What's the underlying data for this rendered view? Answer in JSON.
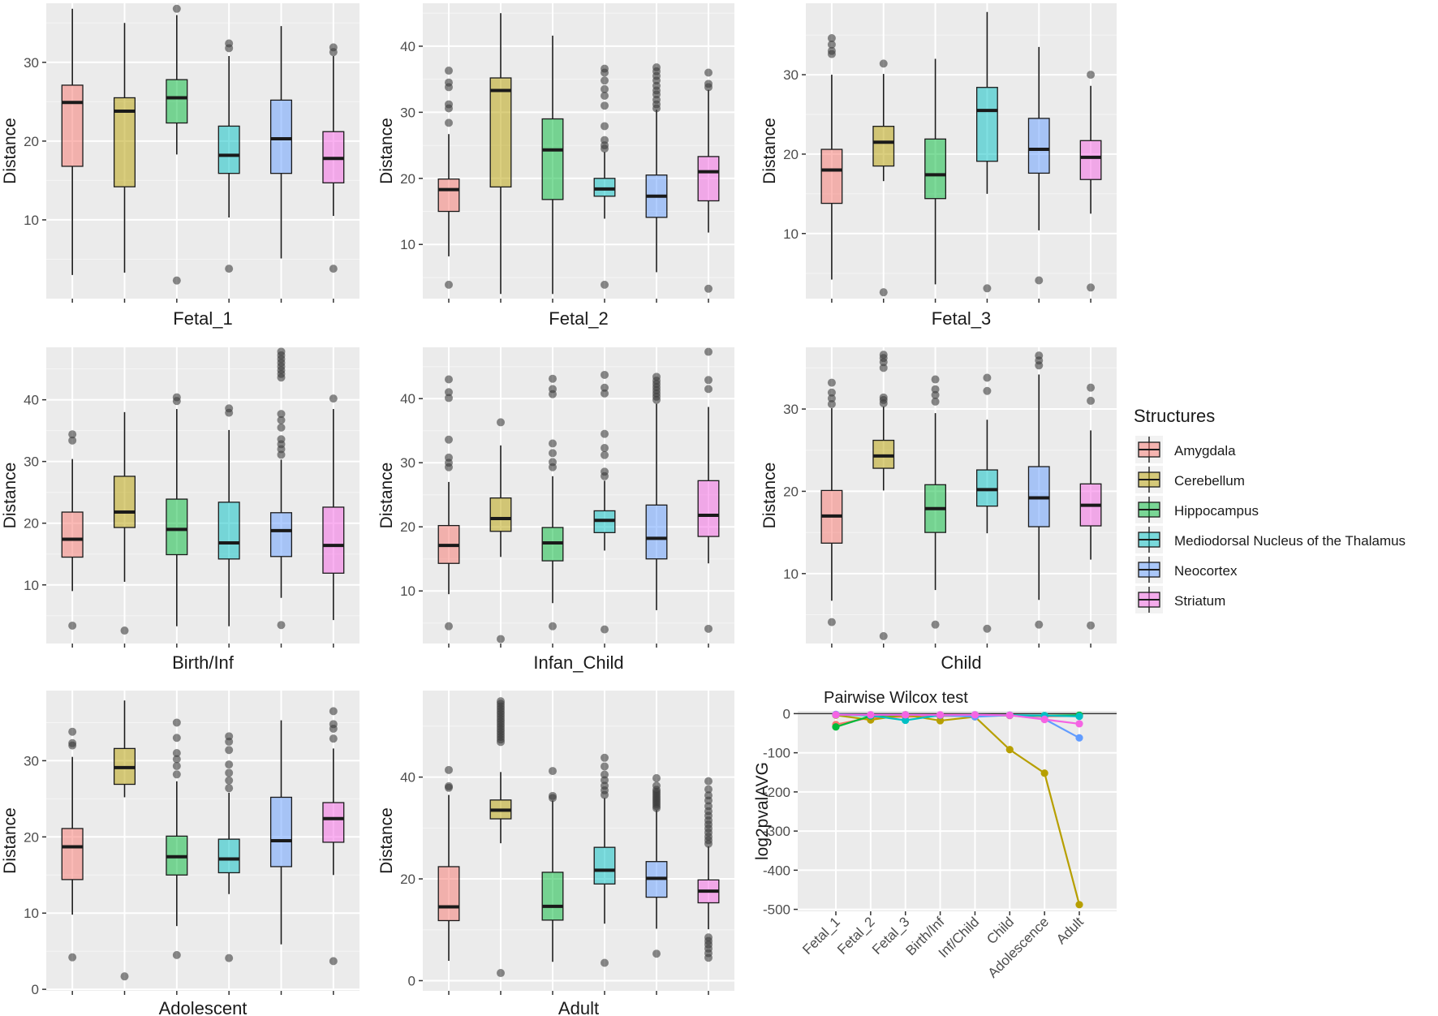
{
  "legend": {
    "title": "Structures",
    "items": [
      {
        "label": "Amygdala",
        "color": "#F8766D"
      },
      {
        "label": "Cerebellum",
        "color": "#B79F00"
      },
      {
        "label": "Hippocampus",
        "color": "#00BA38"
      },
      {
        "label": "Mediodorsal Nucleus of the Thalamus",
        "color": "#00BFC4"
      },
      {
        "label": "Neocortex",
        "color": "#619CFF"
      },
      {
        "label": "Striatum",
        "color": "#F564E3"
      }
    ]
  },
  "chart_data": [
    {
      "type": "boxplot",
      "title": "Fetal_1",
      "ylabel": "Distance",
      "ylim": [
        0,
        37.5
      ],
      "yticks": [
        10,
        20,
        30
      ],
      "boxes": [
        {
          "name": "Amygdala",
          "lower_whisker": 3,
          "q1": 16.8,
          "median": 24.9,
          "q3": 27.1,
          "upper_whisker": 36.8,
          "outliers": []
        },
        {
          "name": "Cerebellum",
          "lower_whisker": 3.3,
          "q1": 14.2,
          "median": 23.8,
          "q3": 25.5,
          "upper_whisker": 35,
          "outliers": []
        },
        {
          "name": "Hippocampus",
          "lower_whisker": 18.3,
          "q1": 22.3,
          "median": 25.5,
          "q3": 27.8,
          "upper_whisker": 36,
          "outliers": [
            2.3,
            36.8
          ]
        },
        {
          "name": "Mediodorsal Nucleus of the Thalamus",
          "lower_whisker": 10.3,
          "q1": 15.9,
          "median": 18.2,
          "q3": 21.9,
          "upper_whisker": 30.8,
          "outliers": [
            3.8,
            31.8,
            32.4
          ]
        },
        {
          "name": "Neocortex",
          "lower_whisker": 5.1,
          "q1": 15.9,
          "median": 20.3,
          "q3": 25.2,
          "upper_whisker": 34.6,
          "outliers": []
        },
        {
          "name": "Striatum",
          "lower_whisker": 10.5,
          "q1": 14.7,
          "median": 17.8,
          "q3": 21.2,
          "upper_whisker": 30.8,
          "outliers": [
            3.8,
            31.3,
            31.9
          ]
        }
      ]
    },
    {
      "type": "boxplot",
      "title": "Fetal_2",
      "ylabel": "Distance",
      "ylim": [
        1.8,
        46.5
      ],
      "yticks": [
        10,
        20,
        30,
        40
      ],
      "boxes": [
        {
          "name": "Amygdala",
          "lower_whisker": 8.2,
          "q1": 15,
          "median": 18.3,
          "q3": 19.9,
          "upper_whisker": 26.7,
          "outliers": [
            3.9,
            28.4,
            30.6,
            31.2,
            33.8,
            34.5,
            36.3
          ]
        },
        {
          "name": "Cerebellum",
          "lower_whisker": 2.5,
          "q1": 18.7,
          "median": 33.3,
          "q3": 35.2,
          "upper_whisker": 45,
          "outliers": []
        },
        {
          "name": "Hippocampus",
          "lower_whisker": 2.5,
          "q1": 16.8,
          "median": 24.3,
          "q3": 29,
          "upper_whisker": 41.6,
          "outliers": []
        },
        {
          "name": "Mediodorsal Nucleus of the Thalamus",
          "lower_whisker": 13.9,
          "q1": 17.3,
          "median": 18.4,
          "q3": 20,
          "upper_whisker": 24,
          "outliers": [
            3.9,
            24.5,
            25,
            25.8,
            27.9,
            31,
            32.5,
            33.5,
            34.8,
            36,
            36.6
          ]
        },
        {
          "name": "Neocortex",
          "lower_whisker": 5.8,
          "q1": 14.1,
          "median": 17.3,
          "q3": 20.5,
          "upper_whisker": 30.4,
          "outliers": [
            30.6,
            31.2,
            31.9,
            32.7,
            33.3,
            34,
            34.8,
            35.5,
            36.2,
            36.8
          ]
        },
        {
          "name": "Striatum",
          "lower_whisker": 11.8,
          "q1": 16.6,
          "median": 21,
          "q3": 23.3,
          "upper_whisker": 33.4,
          "outliers": [
            3.3,
            33.8,
            34.3,
            36
          ]
        }
      ]
    },
    {
      "type": "boxplot",
      "title": "Fetal_3",
      "ylabel": "Distance",
      "ylim": [
        1.8,
        39
      ],
      "yticks": [
        10,
        20,
        30
      ],
      "boxes": [
        {
          "name": "Amygdala",
          "lower_whisker": 4.2,
          "q1": 13.8,
          "median": 18,
          "q3": 20.6,
          "upper_whisker": 30,
          "outliers": [
            32.6,
            33,
            33.8,
            34.6
          ]
        },
        {
          "name": "Cerebellum",
          "lower_whisker": 16.6,
          "q1": 18.5,
          "median": 21.5,
          "q3": 23.5,
          "upper_whisker": 30.1,
          "outliers": [
            2.6,
            31.4
          ]
        },
        {
          "name": "Hippocampus",
          "lower_whisker": 3.6,
          "q1": 14.4,
          "median": 17.4,
          "q3": 21.9,
          "upper_whisker": 32,
          "outliers": []
        },
        {
          "name": "Mediodorsal Nucleus of the Thalamus",
          "lower_whisker": 15,
          "q1": 19.1,
          "median": 25.5,
          "q3": 28.4,
          "upper_whisker": 37.9,
          "outliers": [
            3.1
          ]
        },
        {
          "name": "Neocortex",
          "lower_whisker": 10.4,
          "q1": 17.6,
          "median": 20.6,
          "q3": 24.5,
          "upper_whisker": 33.5,
          "outliers": [
            4.1
          ]
        },
        {
          "name": "Striatum",
          "lower_whisker": 12.5,
          "q1": 16.8,
          "median": 19.6,
          "q3": 21.7,
          "upper_whisker": 28.6,
          "outliers": [
            3.2,
            30
          ]
        }
      ]
    },
    {
      "type": "boxplot",
      "title": "Birth/Inf",
      "ylabel": "Distance",
      "ylim": [
        0.5,
        48.5
      ],
      "yticks": [
        10,
        20,
        30,
        40
      ],
      "boxes": [
        {
          "name": "Amygdala",
          "lower_whisker": 9,
          "q1": 14.5,
          "median": 17.4,
          "q3": 21.8,
          "upper_whisker": 30.4,
          "outliers": [
            3.4,
            33.4,
            34.4
          ]
        },
        {
          "name": "Cerebellum",
          "lower_whisker": 10.5,
          "q1": 19.3,
          "median": 21.8,
          "q3": 27.6,
          "upper_whisker": 38,
          "outliers": [
            2.6
          ]
        },
        {
          "name": "Hippocampus",
          "lower_whisker": 3.3,
          "q1": 14.9,
          "median": 19,
          "q3": 23.9,
          "upper_whisker": 38.5,
          "outliers": [
            39.8,
            40.4
          ]
        },
        {
          "name": "Mediodorsal Nucleus of the Thalamus",
          "lower_whisker": 3.3,
          "q1": 14.2,
          "median": 16.8,
          "q3": 23.4,
          "upper_whisker": 35.1,
          "outliers": [
            37.9,
            38.6
          ]
        },
        {
          "name": "Neocortex",
          "lower_whisker": 7.9,
          "q1": 14.6,
          "median": 18.8,
          "q3": 21.7,
          "upper_whisker": 30.3,
          "outliers": [
            3.5,
            31.1,
            32,
            32.8,
            33.6,
            35.5,
            36.7,
            37.7,
            43.6,
            44.2,
            44.8,
            45.4,
            46,
            46.6,
            47.2,
            47.8
          ]
        },
        {
          "name": "Striatum",
          "lower_whisker": 4.3,
          "q1": 11.9,
          "median": 16.4,
          "q3": 22.6,
          "upper_whisker": 38.5,
          "outliers": [
            40.2
          ]
        }
      ]
    },
    {
      "type": "boxplot",
      "title": "Infan_Child",
      "ylabel": "Distance",
      "ylim": [
        1.8,
        48
      ],
      "yticks": [
        10,
        20,
        30,
        40
      ],
      "boxes": [
        {
          "name": "Amygdala",
          "lower_whisker": 9.5,
          "q1": 14.3,
          "median": 17.1,
          "q3": 20.2,
          "upper_whisker": 27,
          "outliers": [
            4.5,
            29.3,
            30,
            30.8,
            33.6,
            40.1,
            41,
            43
          ]
        },
        {
          "name": "Cerebellum",
          "lower_whisker": 15.3,
          "q1": 19.3,
          "median": 21.3,
          "q3": 24.5,
          "upper_whisker": 32.7,
          "outliers": [
            2.5,
            36.3
          ]
        },
        {
          "name": "Hippocampus",
          "lower_whisker": 8.1,
          "q1": 14.7,
          "median": 17.5,
          "q3": 19.9,
          "upper_whisker": 27.9,
          "outliers": [
            4.5,
            29.3,
            30.1,
            31.5,
            33,
            40.7,
            41.5,
            43.1
          ]
        },
        {
          "name": "Mediodorsal Nucleus of the Thalamus",
          "lower_whisker": 16.3,
          "q1": 19.1,
          "median": 21,
          "q3": 22.5,
          "upper_whisker": 27.2,
          "outliers": [
            4,
            27.9,
            28.6,
            31.2,
            32.3,
            34.5,
            40.8,
            41.7,
            43.7
          ]
        },
        {
          "name": "Neocortex",
          "lower_whisker": 7,
          "q1": 15,
          "median": 18.2,
          "q3": 23.4,
          "upper_whisker": 39.2,
          "outliers": [
            39.8,
            40.3,
            40.8,
            41.3,
            41.8,
            42.3,
            42.8,
            43.4
          ]
        },
        {
          "name": "Striatum",
          "lower_whisker": 14.3,
          "q1": 18.5,
          "median": 21.8,
          "q3": 27.2,
          "upper_whisker": 38.7,
          "outliers": [
            4.1,
            41.5,
            42.9,
            47.3
          ]
        }
      ]
    },
    {
      "type": "boxplot",
      "title": "Child",
      "ylabel": "Distance",
      "ylim": [
        1.5,
        37.5
      ],
      "yticks": [
        10,
        20,
        30
      ],
      "boxes": [
        {
          "name": "Amygdala",
          "lower_whisker": 6.7,
          "q1": 13.7,
          "median": 17,
          "q3": 20.1,
          "upper_whisker": 30.1,
          "outliers": [
            4.1,
            30.6,
            31.3,
            32,
            33.2
          ]
        },
        {
          "name": "Cerebellum",
          "lower_whisker": 20.1,
          "q1": 22.8,
          "median": 24.3,
          "q3": 26.2,
          "upper_whisker": 30.3,
          "outliers": [
            2.4,
            30.7,
            31.1,
            31.4,
            35,
            35.7,
            36.2,
            36.6
          ]
        },
        {
          "name": "Hippocampus",
          "lower_whisker": 8,
          "q1": 15,
          "median": 17.9,
          "q3": 20.8,
          "upper_whisker": 29.5,
          "outliers": [
            3.8,
            30.9,
            31.7,
            32.4,
            33.6
          ]
        },
        {
          "name": "Mediodorsal Nucleus of the Thalamus",
          "lower_whisker": 14.9,
          "q1": 18.2,
          "median": 20.2,
          "q3": 22.6,
          "upper_whisker": 28.7,
          "outliers": [
            3.3,
            32.2,
            33.8
          ]
        },
        {
          "name": "Neocortex",
          "lower_whisker": 6.8,
          "q1": 15.7,
          "median": 19.2,
          "q3": 23,
          "upper_whisker": 34.2,
          "outliers": [
            3.8,
            35.3,
            35.9,
            36.5
          ]
        },
        {
          "name": "Striatum",
          "lower_whisker": 11.7,
          "q1": 15.8,
          "median": 18.3,
          "q3": 20.9,
          "upper_whisker": 27.4,
          "outliers": [
            3.7,
            31,
            32.6
          ]
        }
      ]
    },
    {
      "type": "boxplot",
      "title": "Adolescent",
      "ylabel": "Distance",
      "ylim": [
        -0.2,
        39.2
      ],
      "yticks": [
        0,
        10,
        20,
        30
      ],
      "boxes": [
        {
          "name": "Amygdala",
          "lower_whisker": 9.8,
          "q1": 14.4,
          "median": 18.7,
          "q3": 21.1,
          "upper_whisker": 30.5,
          "outliers": [
            4.2,
            32,
            32.3,
            33.8
          ]
        },
        {
          "name": "Cerebellum",
          "lower_whisker": 25.2,
          "q1": 26.9,
          "median": 29.1,
          "q3": 31.6,
          "upper_whisker": 37.9,
          "outliers": [
            1.7
          ]
        },
        {
          "name": "Hippocampus",
          "lower_whisker": 8.3,
          "q1": 15,
          "median": 17.4,
          "q3": 20.1,
          "upper_whisker": 27.3,
          "outliers": [
            4.5,
            28.2,
            29.3,
            30.2,
            31,
            33,
            35
          ]
        },
        {
          "name": "Mediodorsal Nucleus of the Thalamus",
          "lower_whisker": 12.5,
          "q1": 15.3,
          "median": 17.1,
          "q3": 19.7,
          "upper_whisker": 25.8,
          "outliers": [
            4.1,
            26.4,
            27.4,
            28.4,
            29.5,
            31.4,
            32.5,
            33.2
          ]
        },
        {
          "name": "Neocortex",
          "lower_whisker": 5.9,
          "q1": 16.1,
          "median": 19.5,
          "q3": 25.2,
          "upper_whisker": 35.3,
          "outliers": []
        },
        {
          "name": "Striatum",
          "lower_whisker": 15,
          "q1": 19.3,
          "median": 22.4,
          "q3": 24.5,
          "upper_whisker": 31.6,
          "outliers": [
            3.7,
            32.9,
            34.2,
            34.8,
            36.5
          ]
        }
      ]
    },
    {
      "type": "boxplot",
      "title": "Adult",
      "ylabel": "Distance",
      "ylim": [
        -2,
        57
      ],
      "yticks": [
        0,
        20,
        40
      ],
      "boxes": [
        {
          "name": "Amygdala",
          "lower_whisker": 3.9,
          "q1": 11.8,
          "median": 14.5,
          "q3": 22.4,
          "upper_whisker": 36.5,
          "outliers": [
            37.9,
            38.2,
            41.4
          ]
        },
        {
          "name": "Cerebellum",
          "lower_whisker": 27,
          "q1": 31.8,
          "median": 33.5,
          "q3": 35.5,
          "upper_whisker": 41,
          "outliers": [
            1.5,
            46.9,
            47.4,
            47.9,
            48.4,
            48.9,
            49.4,
            49.9,
            50.4,
            50.9,
            51.4,
            51.9,
            52.4,
            52.9,
            53.4,
            53.9,
            54.4,
            54.9
          ]
        },
        {
          "name": "Hippocampus",
          "lower_whisker": 3.7,
          "q1": 11.9,
          "median": 14.6,
          "q3": 21.3,
          "upper_whisker": 35.4,
          "outliers": [
            35.9,
            36.3,
            41.2
          ]
        },
        {
          "name": "Mediodorsal Nucleus of the Thalamus",
          "lower_whisker": 11.2,
          "q1": 19,
          "median": 21.7,
          "q3": 26.2,
          "upper_whisker": 35.9,
          "outliers": [
            3.5,
            36.5,
            37.4,
            38.3,
            39.4,
            40.5,
            42.1,
            43.8
          ]
        },
        {
          "name": "Neocortex",
          "lower_whisker": 10.2,
          "q1": 16.4,
          "median": 20.1,
          "q3": 23.4,
          "upper_whisker": 33.5,
          "outliers": [
            5.3,
            33.9,
            34.3,
            34.7,
            35.1,
            35.5,
            35.9,
            36.3,
            36.7,
            37.1,
            37.5,
            38.3,
            39.8
          ]
        },
        {
          "name": "Striatum",
          "lower_whisker": 10.1,
          "q1": 15.3,
          "median": 17.6,
          "q3": 19.8,
          "upper_whisker": 26.4,
          "outliers": [
            4.5,
            5.4,
            6.3,
            7.1,
            7.8,
            8.5,
            26.9,
            27.6,
            28.3,
            29.1,
            29.9,
            30.7,
            31.5,
            32.4,
            33.3,
            34.3,
            35.4,
            36.4,
            37.6,
            39.2
          ]
        }
      ]
    },
    {
      "type": "line",
      "title": "Pairwise Wilcox test",
      "xlabel": "",
      "ylabel": "log2pvalAVG",
      "categories": [
        "Fetal_1",
        "Fetal_2",
        "Fetal_3",
        "Birth/Inf",
        "Inf/Child",
        "Child",
        "Adolescence",
        "Adult"
      ],
      "ylim": [
        -505,
        7
      ],
      "yticks": [
        0,
        -100,
        -200,
        -300,
        -400,
        -500
      ],
      "hline": 0,
      "series": [
        {
          "name": "Amygdala",
          "color": "#F8766D",
          "values": [
            -28,
            -10,
            -8,
            -6,
            -6,
            -5,
            -7,
            -6
          ]
        },
        {
          "name": "Cerebellum",
          "color": "#B79F00",
          "values": [
            -4,
            -16,
            -3,
            -18,
            -8,
            -92,
            -152,
            -488
          ]
        },
        {
          "name": "Hippocampus",
          "color": "#00BA38",
          "values": [
            -34,
            -6,
            -3,
            -4,
            -4,
            -4,
            -5,
            -4
          ]
        },
        {
          "name": "Mediodorsal Nucleus of the Thalamus",
          "color": "#00BFC4",
          "values": [
            -3,
            -5,
            -17,
            -4,
            -3,
            -4,
            -5,
            -7
          ]
        },
        {
          "name": "Neocortex",
          "color": "#619CFF",
          "values": [
            -2,
            -3,
            -3,
            -4,
            -8,
            -4,
            -14,
            -62
          ]
        },
        {
          "name": "Striatum",
          "color": "#F564E3",
          "values": [
            -3,
            -3,
            -3,
            -3,
            -3,
            -4,
            -15,
            -26
          ]
        }
      ]
    }
  ]
}
